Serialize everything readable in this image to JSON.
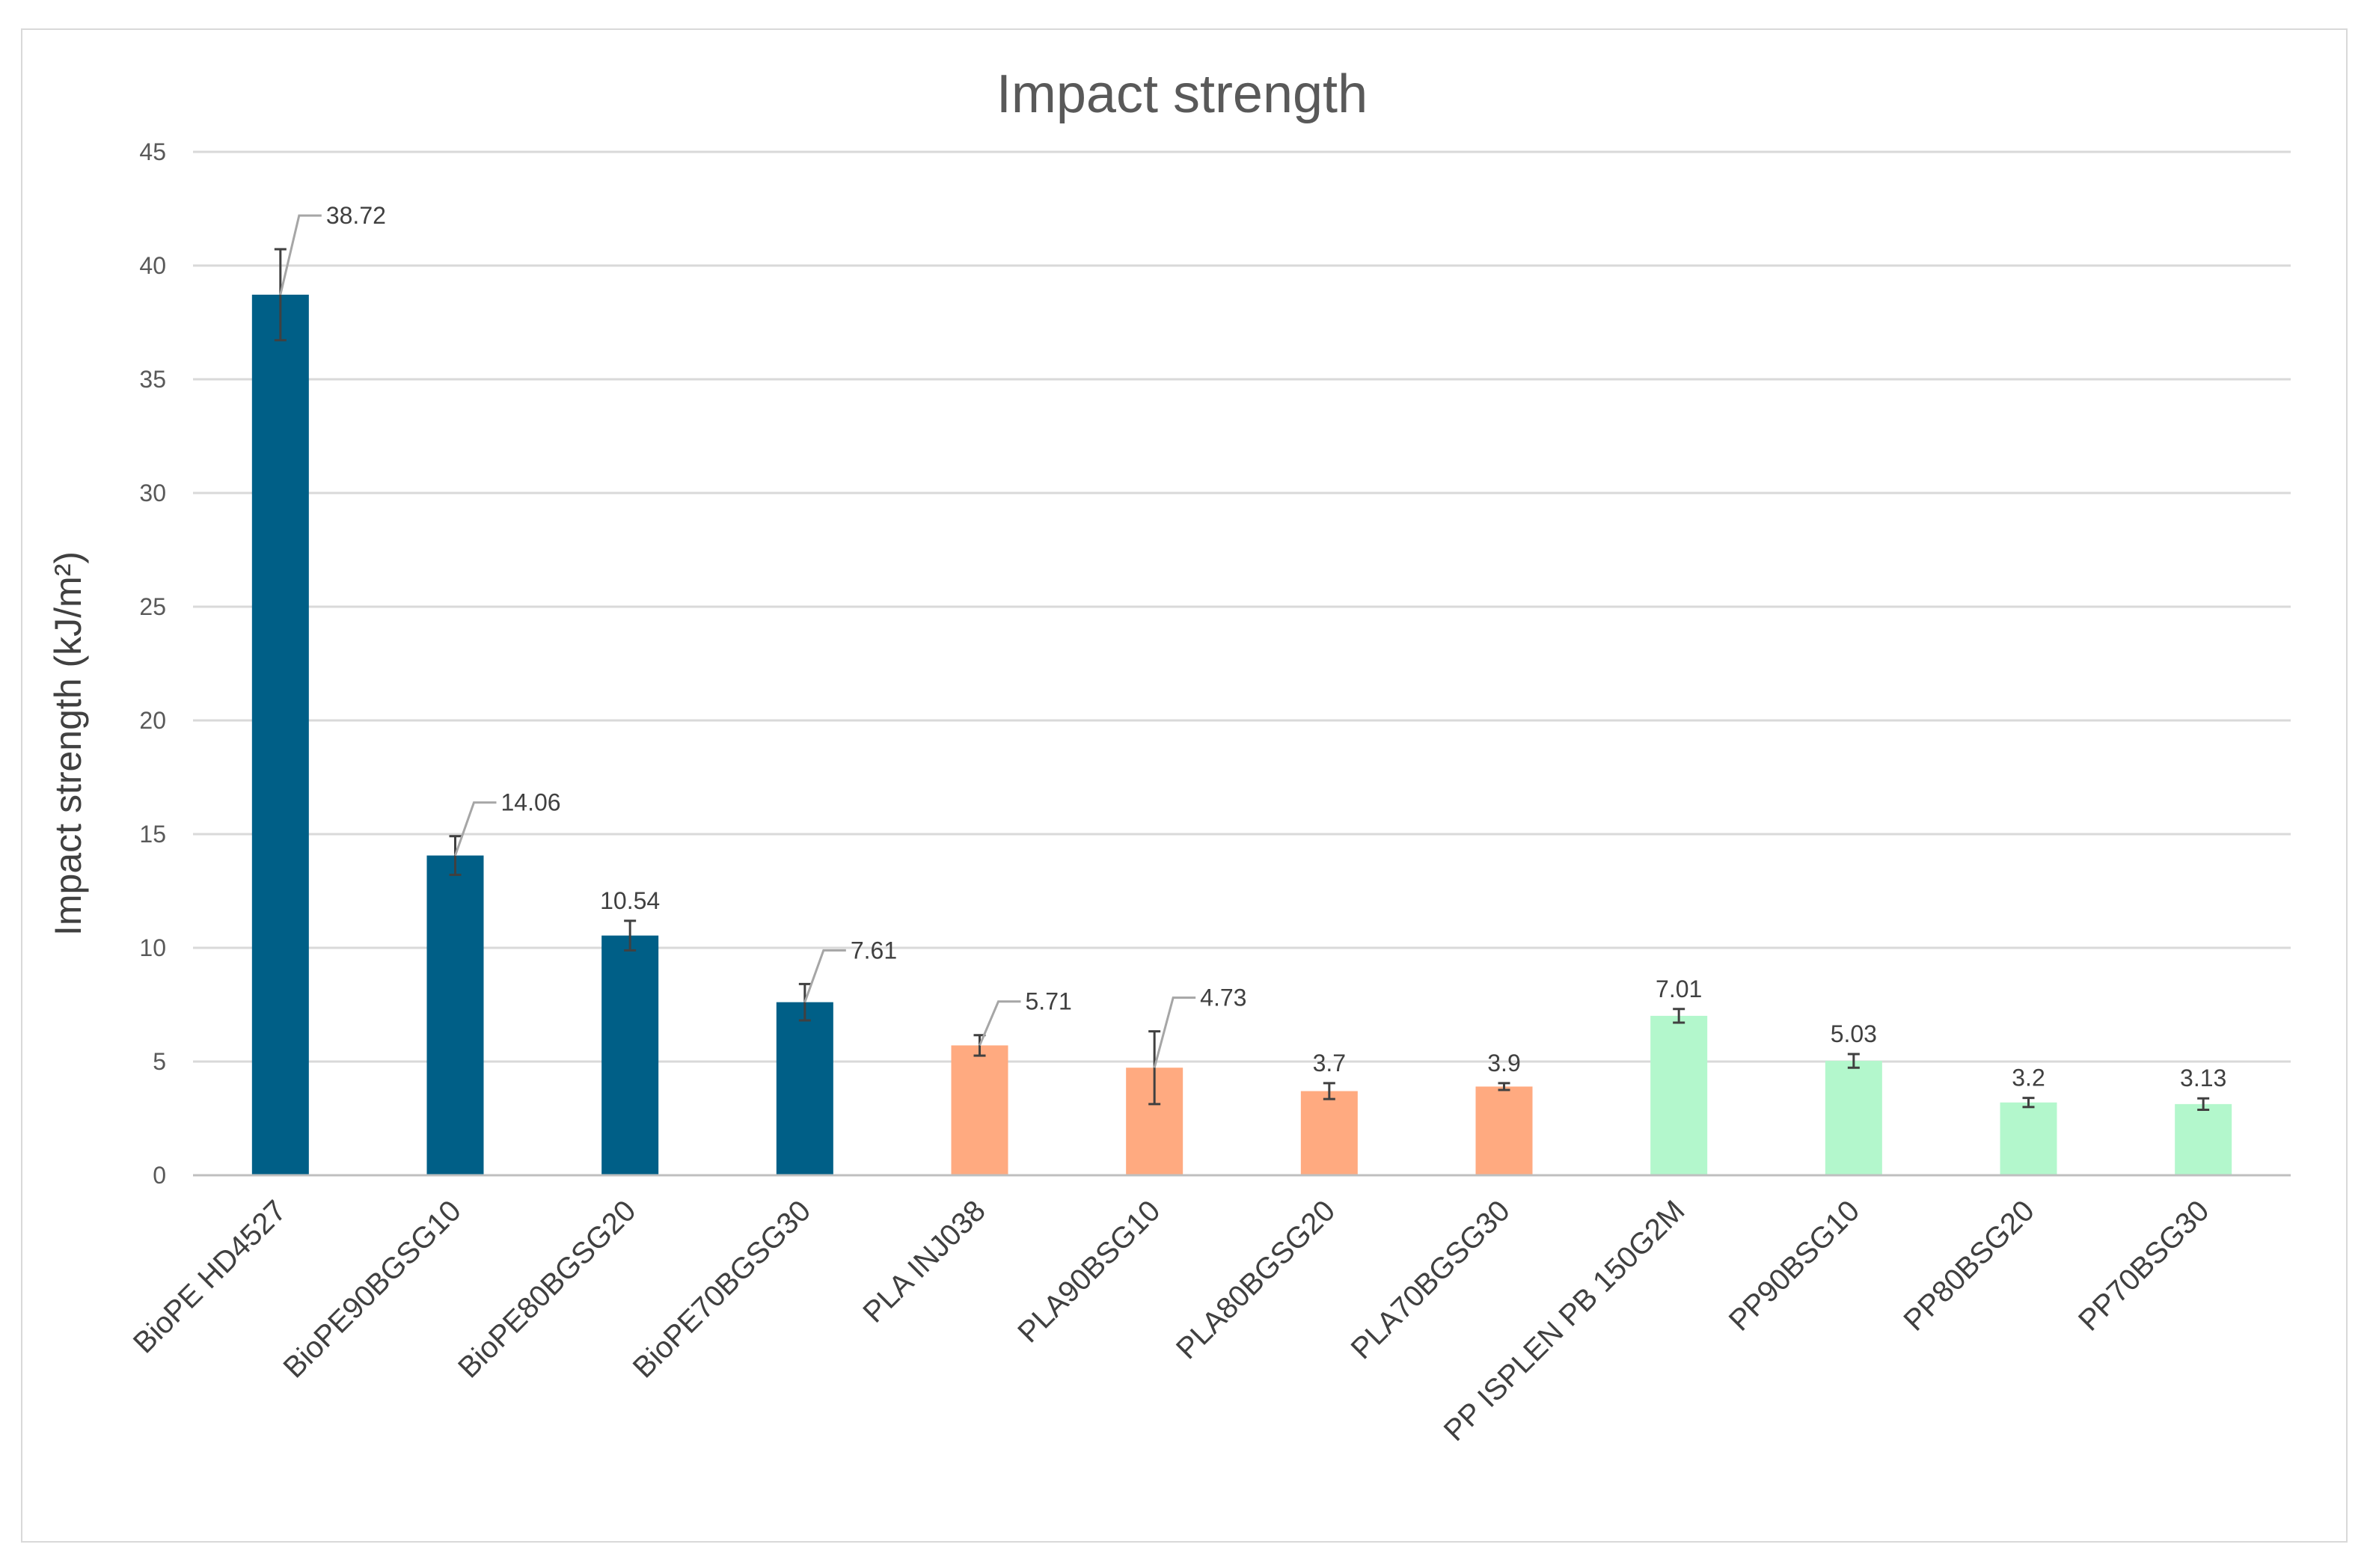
{
  "chart_data": {
    "type": "bar",
    "title": "Impact strength",
    "xlabel": "",
    "ylabel": "Impact strength (kJ/m²)",
    "ylim": [
      0,
      45
    ],
    "yticks": [
      0,
      5,
      10,
      15,
      20,
      25,
      30,
      35,
      40,
      45
    ],
    "grid": true,
    "legend": "none",
    "categories": [
      "BioPE HD4527",
      "BioPE90BGSG10",
      "BioPE80BGSG20",
      "BioPE70BGSG30",
      "PLA INJ038",
      "PLA90BSG10",
      "PLA80BGSG20",
      "PLA70BGSG30",
      "PP ISPLEN PB 150G2M",
      "PP90BSG10",
      "PP80BSG20",
      "PP70BSG30"
    ],
    "values": [
      38.72,
      14.06,
      10.54,
      7.61,
      5.71,
      4.73,
      3.7,
      3.9,
      7.01,
      5.03,
      3.2,
      3.13
    ],
    "data_labels": [
      "38.72",
      "14.06",
      "10.54",
      "7.61",
      "5.71",
      "4.73",
      "3.7",
      "3.9",
      "7.01",
      "5.03",
      "3.2",
      "3.13"
    ],
    "error": [
      2.0,
      0.85,
      0.65,
      0.8,
      0.45,
      1.6,
      0.35,
      0.15,
      0.3,
      0.3,
      0.2,
      0.25
    ],
    "bar_colors": [
      "#005f87",
      "#005f87",
      "#005f87",
      "#005f87",
      "#ffaa80",
      "#ffaa80",
      "#ffaa80",
      "#ffaa80",
      "#b3f7cc",
      "#b3f7cc",
      "#b3f7cc",
      "#b3f7cc"
    ],
    "gridline_color": "#d9d9d9",
    "axis_color": "#bfbfbf",
    "errorbar_color": "#404040"
  }
}
